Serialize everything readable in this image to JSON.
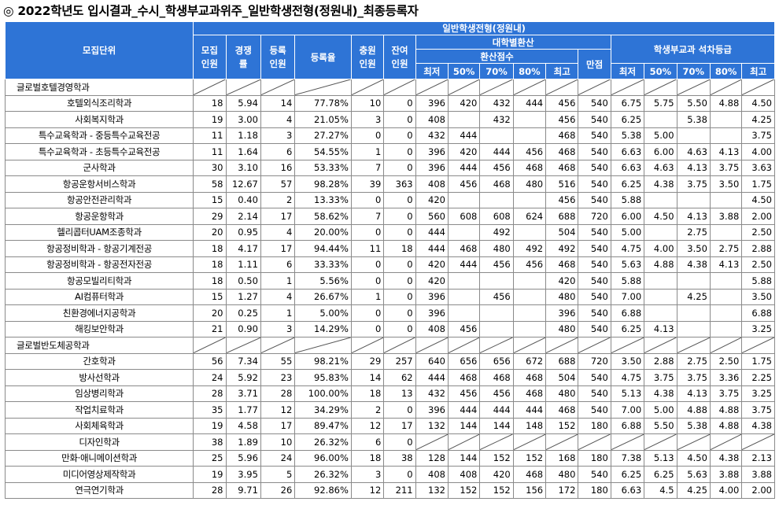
{
  "title": "◎ 2022학년도 입시결과_수시_학생부교과위주_일반학생전형(정원내)_최종등록자",
  "header": {
    "unit": "모집단위",
    "admission_type": "일반학생전형(정원내)",
    "quota": "모집\n인원",
    "competition": "경쟁\n률",
    "enrolled": "등록\n인원",
    "enroll_rate": "등록율",
    "waitlist": "충원\n인원",
    "remaining": "잔여\n인원",
    "converted": "대학별환산",
    "converted_score": "환산점수",
    "full_score": "만점",
    "grade": "학생부교과 석차등급",
    "stats": [
      "최저",
      "50%",
      "70%",
      "80%",
      "최고"
    ]
  },
  "rows": [
    {
      "group": true,
      "name": "글로벌호텔경영학과"
    },
    {
      "name": "호텔외식조리학과",
      "v": [
        "18",
        "5.94",
        "14",
        "77.78%",
        "10",
        "0",
        "396",
        "420",
        "432",
        "444",
        "456",
        "540",
        "6.75",
        "5.75",
        "5.50",
        "4.88",
        "4.50"
      ]
    },
    {
      "name": "사회복지학과",
      "v": [
        "19",
        "3.00",
        "4",
        "21.05%",
        "3",
        "0",
        "408",
        "",
        "432",
        "",
        "456",
        "540",
        "6.25",
        "",
        "5.38",
        "",
        "4.25"
      ]
    },
    {
      "name": "특수교육학과 - 중등특수교육전공",
      "v": [
        "11",
        "1.18",
        "3",
        "27.27%",
        "0",
        "0",
        "432",
        "444",
        "",
        "",
        "468",
        "540",
        "5.38",
        "5.00",
        "",
        "",
        "3.75"
      ]
    },
    {
      "name": "특수교육학과 - 초등특수교육전공",
      "v": [
        "11",
        "1.64",
        "6",
        "54.55%",
        "1",
        "0",
        "396",
        "420",
        "444",
        "456",
        "468",
        "540",
        "6.63",
        "6.00",
        "4.63",
        "4.13",
        "4.00"
      ]
    },
    {
      "name": "군사학과",
      "v": [
        "30",
        "3.10",
        "16",
        "53.33%",
        "7",
        "0",
        "396",
        "444",
        "456",
        "468",
        "468",
        "540",
        "6.63",
        "4.63",
        "4.13",
        "3.75",
        "3.63"
      ]
    },
    {
      "name": "항공운항서비스학과",
      "v": [
        "58",
        "12.67",
        "57",
        "98.28%",
        "39",
        "363",
        "408",
        "456",
        "468",
        "480",
        "516",
        "540",
        "6.25",
        "4.38",
        "3.75",
        "3.50",
        "1.75"
      ]
    },
    {
      "name": "항공안전관리학과",
      "v": [
        "15",
        "0.40",
        "2",
        "13.33%",
        "0",
        "0",
        "420",
        "",
        "",
        "",
        "456",
        "540",
        "5.88",
        "",
        "",
        "",
        "4.50"
      ]
    },
    {
      "name": "항공운항학과",
      "v": [
        "29",
        "2.14",
        "17",
        "58.62%",
        "7",
        "0",
        "560",
        "608",
        "608",
        "624",
        "688",
        "720",
        "6.00",
        "4.50",
        "4.13",
        "3.88",
        "2.00"
      ]
    },
    {
      "name": "헬리콥터UAM조종학과",
      "v": [
        "20",
        "0.95",
        "4",
        "20.00%",
        "0",
        "0",
        "444",
        "",
        "492",
        "",
        "504",
        "540",
        "5.00",
        "",
        "2.75",
        "",
        "2.50"
      ]
    },
    {
      "name": "항공정비학과 - 항공기계전공",
      "v": [
        "18",
        "4.17",
        "17",
        "94.44%",
        "11",
        "18",
        "444",
        "468",
        "480",
        "492",
        "492",
        "540",
        "4.75",
        "4.00",
        "3.50",
        "2.75",
        "2.88"
      ]
    },
    {
      "name": "항공정비학과 - 항공전자전공",
      "v": [
        "18",
        "1.11",
        "6",
        "33.33%",
        "0",
        "0",
        "420",
        "444",
        "456",
        "456",
        "468",
        "540",
        "5.63",
        "4.88",
        "4.38",
        "4.13",
        "2.50"
      ]
    },
    {
      "name": "항공모빌리티학과",
      "v": [
        "18",
        "0.50",
        "1",
        "5.56%",
        "0",
        "0",
        "420",
        "",
        "",
        "",
        "420",
        "540",
        "5.88",
        "",
        "",
        "",
        "5.88"
      ]
    },
    {
      "name": "AI컴퓨터학과",
      "v": [
        "15",
        "1.27",
        "4",
        "26.67%",
        "1",
        "0",
        "396",
        "",
        "456",
        "",
        "480",
        "540",
        "7.00",
        "",
        "4.25",
        "",
        "3.50"
      ]
    },
    {
      "name": "친환경에너지공학과",
      "v": [
        "20",
        "0.25",
        "1",
        "5.00%",
        "0",
        "0",
        "396",
        "",
        "",
        "",
        "396",
        "540",
        "6.88",
        "",
        "",
        "",
        "6.88"
      ]
    },
    {
      "name": "해킹보안학과",
      "v": [
        "21",
        "0.90",
        "3",
        "14.29%",
        "0",
        "0",
        "408",
        "456",
        "",
        "",
        "480",
        "540",
        "6.25",
        "4.13",
        "",
        "",
        "3.25"
      ]
    },
    {
      "group": true,
      "name": "글로벌반도체공학과"
    },
    {
      "name": "간호학과",
      "v": [
        "56",
        "7.34",
        "55",
        "98.21%",
        "29",
        "257",
        "640",
        "656",
        "656",
        "672",
        "688",
        "720",
        "3.50",
        "2.88",
        "2.75",
        "2.50",
        "1.75"
      ]
    },
    {
      "name": "방사선학과",
      "v": [
        "24",
        "5.92",
        "23",
        "95.83%",
        "14",
        "62",
        "444",
        "468",
        "468",
        "468",
        "504",
        "540",
        "4.75",
        "3.75",
        "3.75",
        "3.36",
        "2.25"
      ]
    },
    {
      "name": "임상병리학과",
      "v": [
        "28",
        "3.71",
        "28",
        "100.00%",
        "18",
        "13",
        "432",
        "456",
        "456",
        "468",
        "480",
        "540",
        "5.13",
        "4.38",
        "4.13",
        "3.75",
        "3.25"
      ]
    },
    {
      "name": "작업치료학과",
      "v": [
        "35",
        "1.77",
        "12",
        "34.29%",
        "2",
        "0",
        "396",
        "444",
        "444",
        "444",
        "468",
        "540",
        "7.00",
        "5.00",
        "4.88",
        "4.88",
        "3.75"
      ]
    },
    {
      "name": "사회체육학과",
      "v": [
        "19",
        "4.58",
        "17",
        "89.47%",
        "12",
        "17",
        "132",
        "144",
        "144",
        "148",
        "152",
        "180",
        "6.88",
        "5.50",
        "5.38",
        "4.88",
        "4.38"
      ]
    },
    {
      "name": "디자인학과",
      "v": [
        "38",
        "1.89",
        "10",
        "26.32%",
        "6",
        "0",
        "",
        "",
        "",
        "",
        "",
        "",
        "",
        "",
        "",
        "",
        ""
      ],
      "blank_from": 6
    },
    {
      "name": "만화·애니메이션학과",
      "v": [
        "25",
        "5.96",
        "24",
        "96.00%",
        "18",
        "38",
        "128",
        "144",
        "152",
        "152",
        "168",
        "180",
        "7.38",
        "5.13",
        "4.50",
        "4.38",
        "2.13"
      ]
    },
    {
      "name": "미디어영상제작학과",
      "v": [
        "19",
        "3.95",
        "5",
        "26.32%",
        "3",
        "0",
        "408",
        "408",
        "420",
        "468",
        "480",
        "540",
        "6.25",
        "6.25",
        "5.63",
        "3.88",
        "3.88"
      ]
    },
    {
      "name": "연극연기학과",
      "v": [
        "28",
        "9.71",
        "26",
        "92.86%",
        "12",
        "211",
        "132",
        "152",
        "152",
        "156",
        "172",
        "180",
        "6.63",
        "4.5",
        "4.25",
        "4.00",
        "2.00"
      ]
    }
  ]
}
